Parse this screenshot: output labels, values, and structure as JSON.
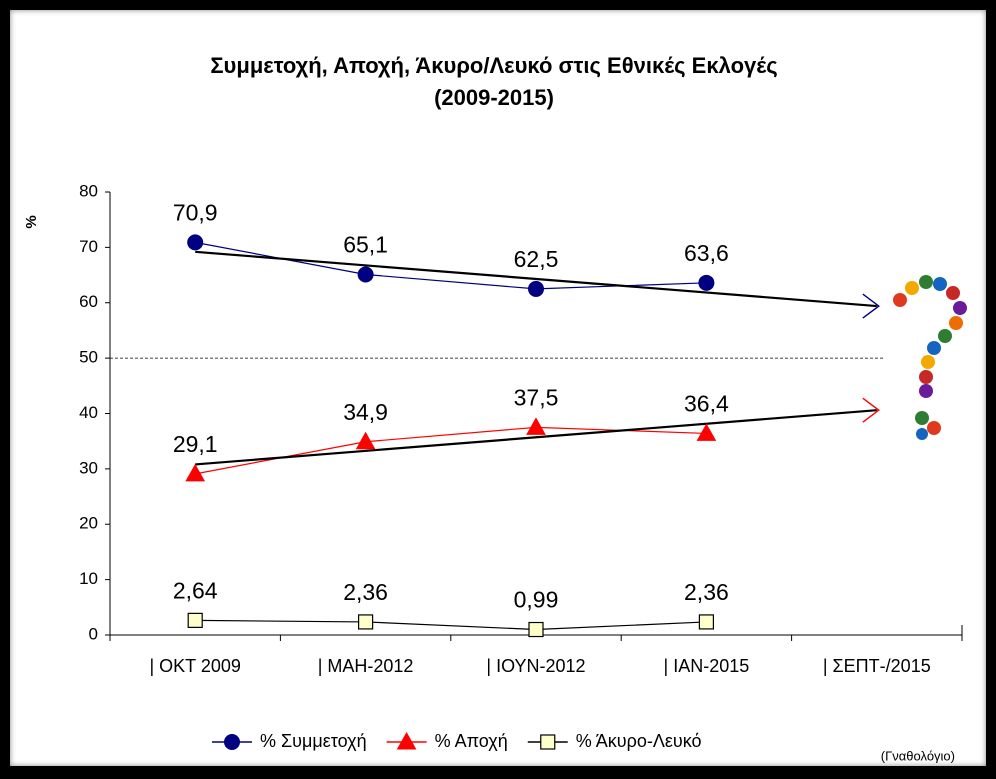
{
  "chart_data": {
    "type": "line",
    "title": "Συμμετοχή, Αποχή, Άκυρο/Λευκό στις Εθνικές Εκλογές",
    "subtitle": "(2009-2015)",
    "y_label": "%",
    "note": "(Γναθολόγιο)",
    "categories": [
      "| ΟΚΤ 2009",
      "| ΜΑΗ-2012",
      "| ΙΟΥΝ-2012",
      "| ΙΑΝ-2015",
      "| ΣΕΠΤ-/2015"
    ],
    "series": [
      {
        "name": "% Συμμετοχή",
        "color": "#000080",
        "marker": "circle",
        "trend": true,
        "values": [
          70.9,
          65.1,
          62.5,
          63.6,
          null
        ],
        "value_labels": [
          "70,9",
          "65,1",
          "62,5",
          "63,6",
          null
        ]
      },
      {
        "name": "% Αποχή",
        "color": "#ff0000",
        "marker": "triangle",
        "trend": true,
        "values": [
          29.1,
          34.9,
          37.5,
          36.4,
          null
        ],
        "value_labels": [
          "29,1",
          "34,9",
          "37,5",
          "36,4",
          null
        ]
      },
      {
        "name": "% Άκυρο-Λευκό",
        "color": "#000000",
        "marker_fill": "#ffffcc",
        "marker": "square",
        "trend": false,
        "values": [
          2.64,
          2.36,
          0.99,
          2.36,
          null
        ],
        "value_labels": [
          "2,64",
          "2,36",
          "0,99",
          "2,36",
          null
        ]
      }
    ],
    "ylim": [
      0,
      80
    ],
    "yticks": [
      0,
      10,
      20,
      30,
      40,
      50,
      60,
      70,
      80
    ],
    "reference_line": 50,
    "legend": "bottom"
  }
}
